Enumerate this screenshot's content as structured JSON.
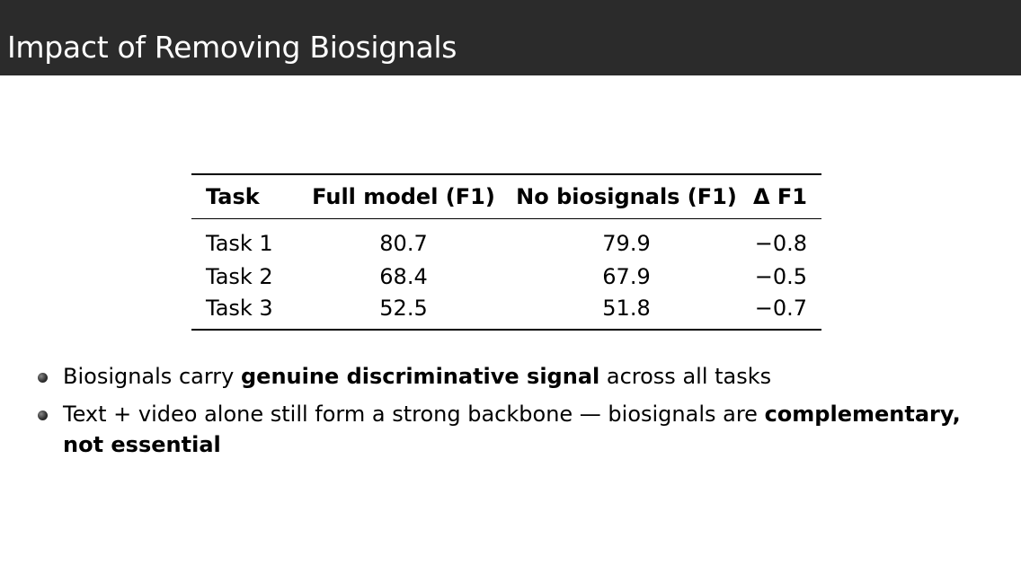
{
  "slide": {
    "title": "Impact of Removing Biosignals"
  },
  "table": {
    "headers": [
      "Task",
      "Full model (F1)",
      "No biosignals (F1)",
      "Δ F1"
    ],
    "rows": [
      [
        "Task 1",
        "80.7",
        "79.9",
        "−0.8"
      ],
      [
        "Task 2",
        "68.4",
        "67.9",
        "−0.5"
      ],
      [
        "Task 3",
        "52.5",
        "51.8",
        "−0.7"
      ]
    ]
  },
  "bullets": [
    {
      "parts": [
        "Biosignals carry ",
        "genuine discriminative signal",
        " across all tasks"
      ]
    },
    {
      "parts": [
        "Text + video alone still form a strong backbone — biosignals are ",
        "complementary, not essential"
      ]
    }
  ]
}
